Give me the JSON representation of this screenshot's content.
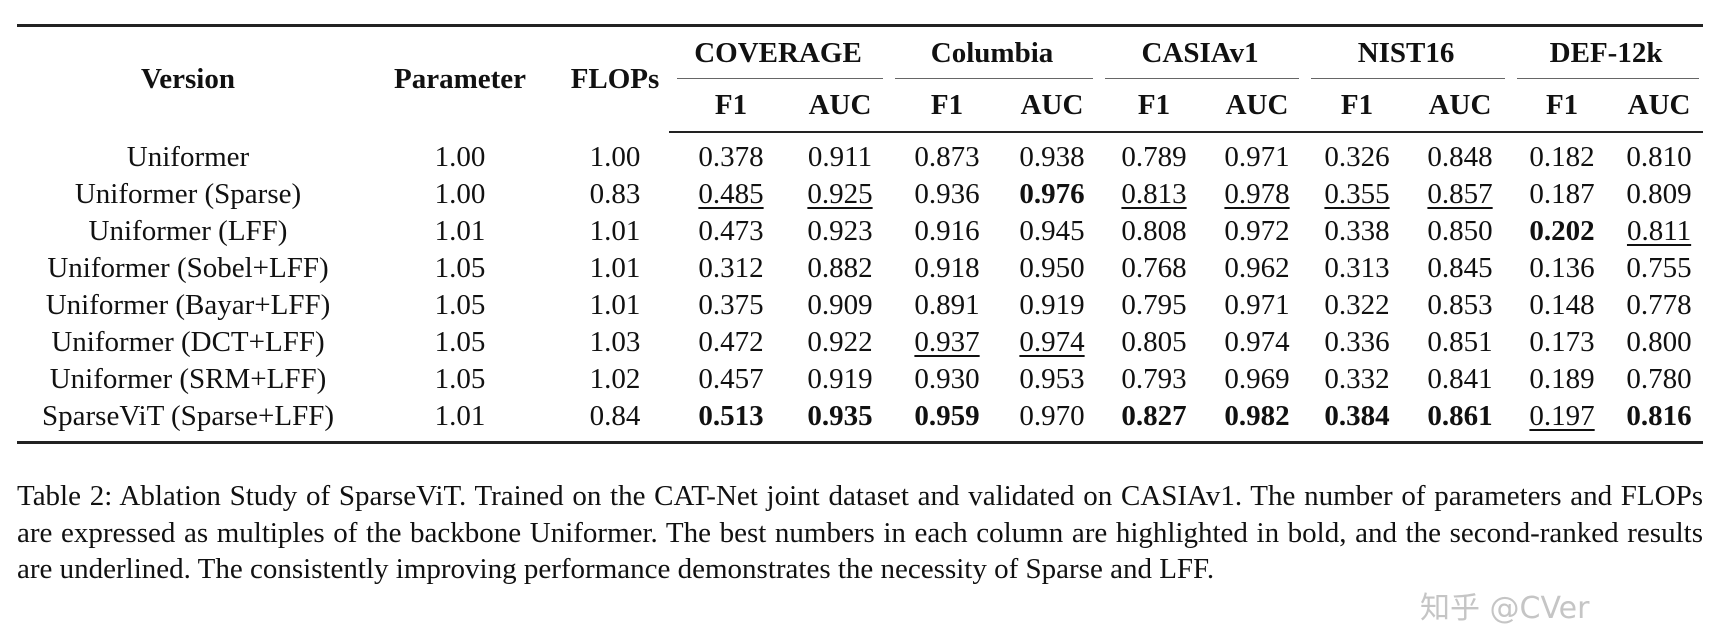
{
  "table": {
    "headers": {
      "version": "Version",
      "parameter": "Parameter",
      "flops": "FLOPs",
      "datasets": [
        "COVERAGE",
        "Columbia",
        "CASIAv1",
        "NIST16",
        "DEF-12k"
      ],
      "metrics": [
        "F1",
        "AUC"
      ]
    },
    "rows": [
      {
        "version": "Uniformer",
        "parameter": "1.00",
        "flops": "1.00",
        "values": [
          "0.378",
          "0.911",
          "0.873",
          "0.938",
          "0.789",
          "0.971",
          "0.326",
          "0.848",
          "0.182",
          "0.810"
        ],
        "bold": [],
        "underline": []
      },
      {
        "version": "Uniformer (Sparse)",
        "parameter": "1.00",
        "flops": "0.83",
        "values": [
          "0.485",
          "0.925",
          "0.936",
          "0.976",
          "0.813",
          "0.978",
          "0.355",
          "0.857",
          "0.187",
          "0.809"
        ],
        "bold": [
          3
        ],
        "underline": [
          0,
          1,
          4,
          5,
          6,
          7
        ]
      },
      {
        "version": "Uniformer (LFF)",
        "parameter": "1.01",
        "flops": "1.01",
        "values": [
          "0.473",
          "0.923",
          "0.916",
          "0.945",
          "0.808",
          "0.972",
          "0.338",
          "0.850",
          "0.202",
          "0.811"
        ],
        "bold": [
          8
        ],
        "underline": [
          9
        ]
      },
      {
        "version": "Uniformer (Sobel+LFF)",
        "parameter": "1.05",
        "flops": "1.01",
        "values": [
          "0.312",
          "0.882",
          "0.918",
          "0.950",
          "0.768",
          "0.962",
          "0.313",
          "0.845",
          "0.136",
          "0.755"
        ],
        "bold": [],
        "underline": []
      },
      {
        "version": "Uniformer (Bayar+LFF)",
        "parameter": "1.05",
        "flops": "1.01",
        "values": [
          "0.375",
          "0.909",
          "0.891",
          "0.919",
          "0.795",
          "0.971",
          "0.322",
          "0.853",
          "0.148",
          "0.778"
        ],
        "bold": [],
        "underline": []
      },
      {
        "version": "Uniformer (DCT+LFF)",
        "parameter": "1.05",
        "flops": "1.03",
        "values": [
          "0.472",
          "0.922",
          "0.937",
          "0.974",
          "0.805",
          "0.974",
          "0.336",
          "0.851",
          "0.173",
          "0.800"
        ],
        "bold": [],
        "underline": [
          2,
          3
        ]
      },
      {
        "version": "Uniformer (SRM+LFF)",
        "parameter": "1.05",
        "flops": "1.02",
        "values": [
          "0.457",
          "0.919",
          "0.930",
          "0.953",
          "0.793",
          "0.969",
          "0.332",
          "0.841",
          "0.189",
          "0.780"
        ],
        "bold": [],
        "underline": []
      },
      {
        "version": "SparseViT (Sparse+LFF)",
        "parameter": "1.01",
        "flops": "0.84",
        "values": [
          "0.513",
          "0.935",
          "0.959",
          "0.970",
          "0.827",
          "0.982",
          "0.384",
          "0.861",
          "0.197",
          "0.816"
        ],
        "bold": [
          0,
          1,
          2,
          4,
          5,
          6,
          7,
          9
        ],
        "underline": [
          8
        ]
      }
    ]
  },
  "caption": "Table 2: Ablation Study of SparseViT. Trained on the CAT-Net joint dataset and validated on CASIAv1. The number of parameters and FLOPs are expressed as multiples of the backbone Uniformer. The best numbers in each column are highlighted in bold, and the second-ranked results are underlined. The consistently improving performance demonstrates the necessity of Sparse and LFF.",
  "watermark": "知乎 @CVer"
}
